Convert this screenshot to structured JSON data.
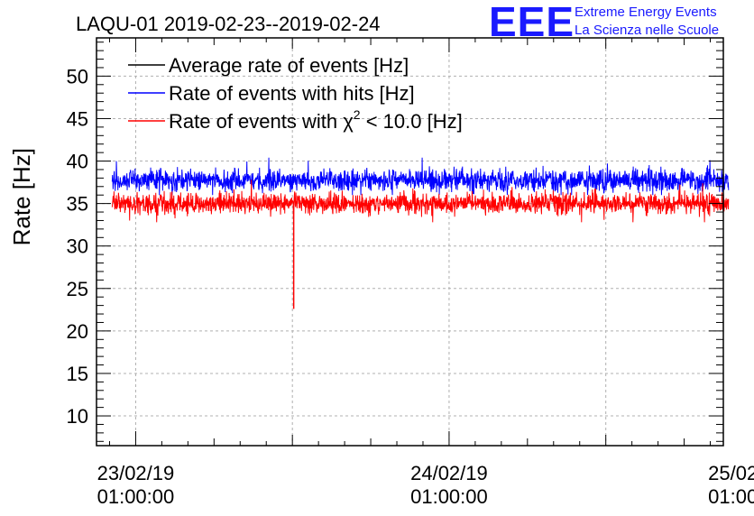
{
  "chart_data": {
    "type": "line",
    "title": "LAQU-01 2019-02-23--2019-02-24",
    "xlabel": "",
    "ylabel": "Rate [Hz]",
    "ylim": [
      6.5,
      54.5
    ],
    "yticks": [
      10,
      15,
      20,
      25,
      30,
      35,
      40,
      45,
      50
    ],
    "xlim_hours": [
      -3,
      45
    ],
    "xticks": [
      {
        "hour": 0,
        "date": "23/02/19",
        "time": "01:00:00"
      },
      {
        "hour": 24,
        "date": "24/02/19",
        "time": "01:00:00"
      },
      {
        "hour": 48,
        "date": "25/02/19",
        "time": "01:00:00"
      }
    ],
    "grid": true,
    "legend_position": "top-left",
    "series": [
      {
        "name": "Average rate of events [Hz]",
        "color": "#000000",
        "start_hour": -1.8,
        "end_hour": 45.4,
        "mean": 37.7,
        "noise": 0.0,
        "visible_samples": 0
      },
      {
        "name": "Rate of events with hits [Hz]",
        "color": "#0000ff",
        "start_hour": -1.8,
        "end_hour": 45.4,
        "mean": 37.7,
        "noise": 0.9,
        "max": 40.4,
        "min": 36.0
      },
      {
        "name": "Rate of events with χ² < 10.0 [Hz]",
        "color": "#ff0000",
        "start_hour": -1.8,
        "end_hour": 45.4,
        "mean": 35.0,
        "noise": 0.9,
        "max": 37.8,
        "min": 32.8,
        "spike_hour": 12.1,
        "spike_value": 22.6
      }
    ],
    "legend_labels": {
      "avg": "Average rate of events [Hz]",
      "hits": "Rate of events with hits [Hz]",
      "chi_prefix": "Rate of events with ",
      "chi_symbol": "χ",
      "chi_sup": "2",
      "chi_suffix": " < 10.0 [Hz]"
    }
  },
  "logo": {
    "mark": "EEE",
    "line1": "Extreme Energy Events",
    "line2": "La Scienza nelle Scuole"
  },
  "colors": {
    "blue": "#0000ff",
    "red": "#ff0000",
    "black": "#000000",
    "grid": "#b0b0b0",
    "logo": "#1a1aff"
  }
}
